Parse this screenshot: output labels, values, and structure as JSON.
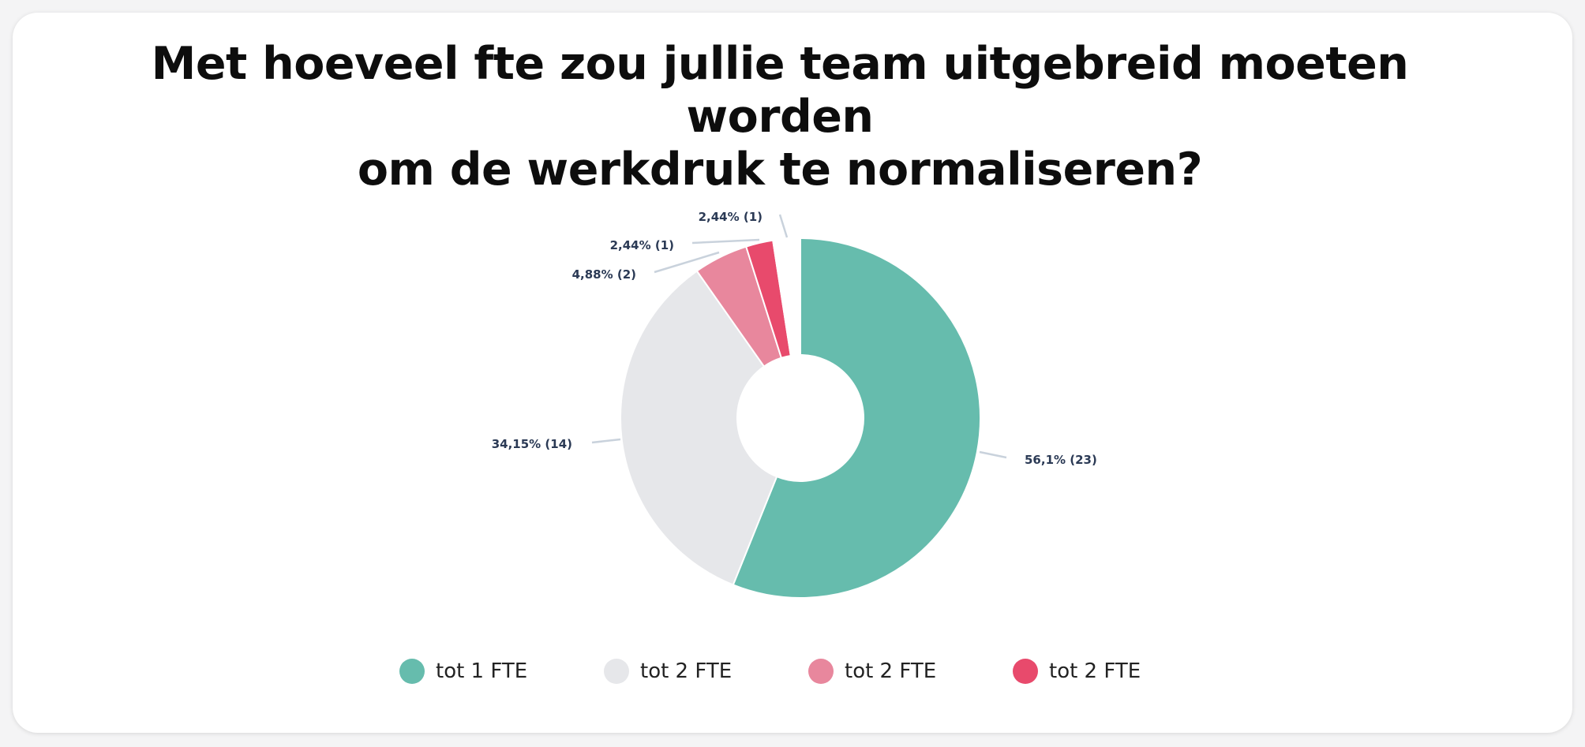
{
  "chart_data": {
    "type": "pie",
    "title_lines": [
      "Met hoeveel fte zou jullie team uitgebreid moeten worden",
      "om de werkdruk te normaliseren?"
    ],
    "donut": true,
    "legend_position": "bottom",
    "slices": [
      {
        "legend": "tot 1 FTE",
        "value": 23,
        "percent_label": "56,1% (23)",
        "color": "#66bcad"
      },
      {
        "legend": "tot 2 FTE",
        "value": 14,
        "percent_label": "34,15% (14)",
        "color": "#e6e7ea"
      },
      {
        "legend": "tot 2 FTE",
        "value": 2,
        "percent_label": "4,88% (2)",
        "color": "#e8879d"
      },
      {
        "legend": "tot 2 FTE",
        "value": 1,
        "percent_label": "2,44% (1)",
        "color": "#e84a6c"
      },
      {
        "legend": "",
        "value": 1,
        "percent_label": "2,44% (1)",
        "color": "#ffffff"
      }
    ]
  }
}
